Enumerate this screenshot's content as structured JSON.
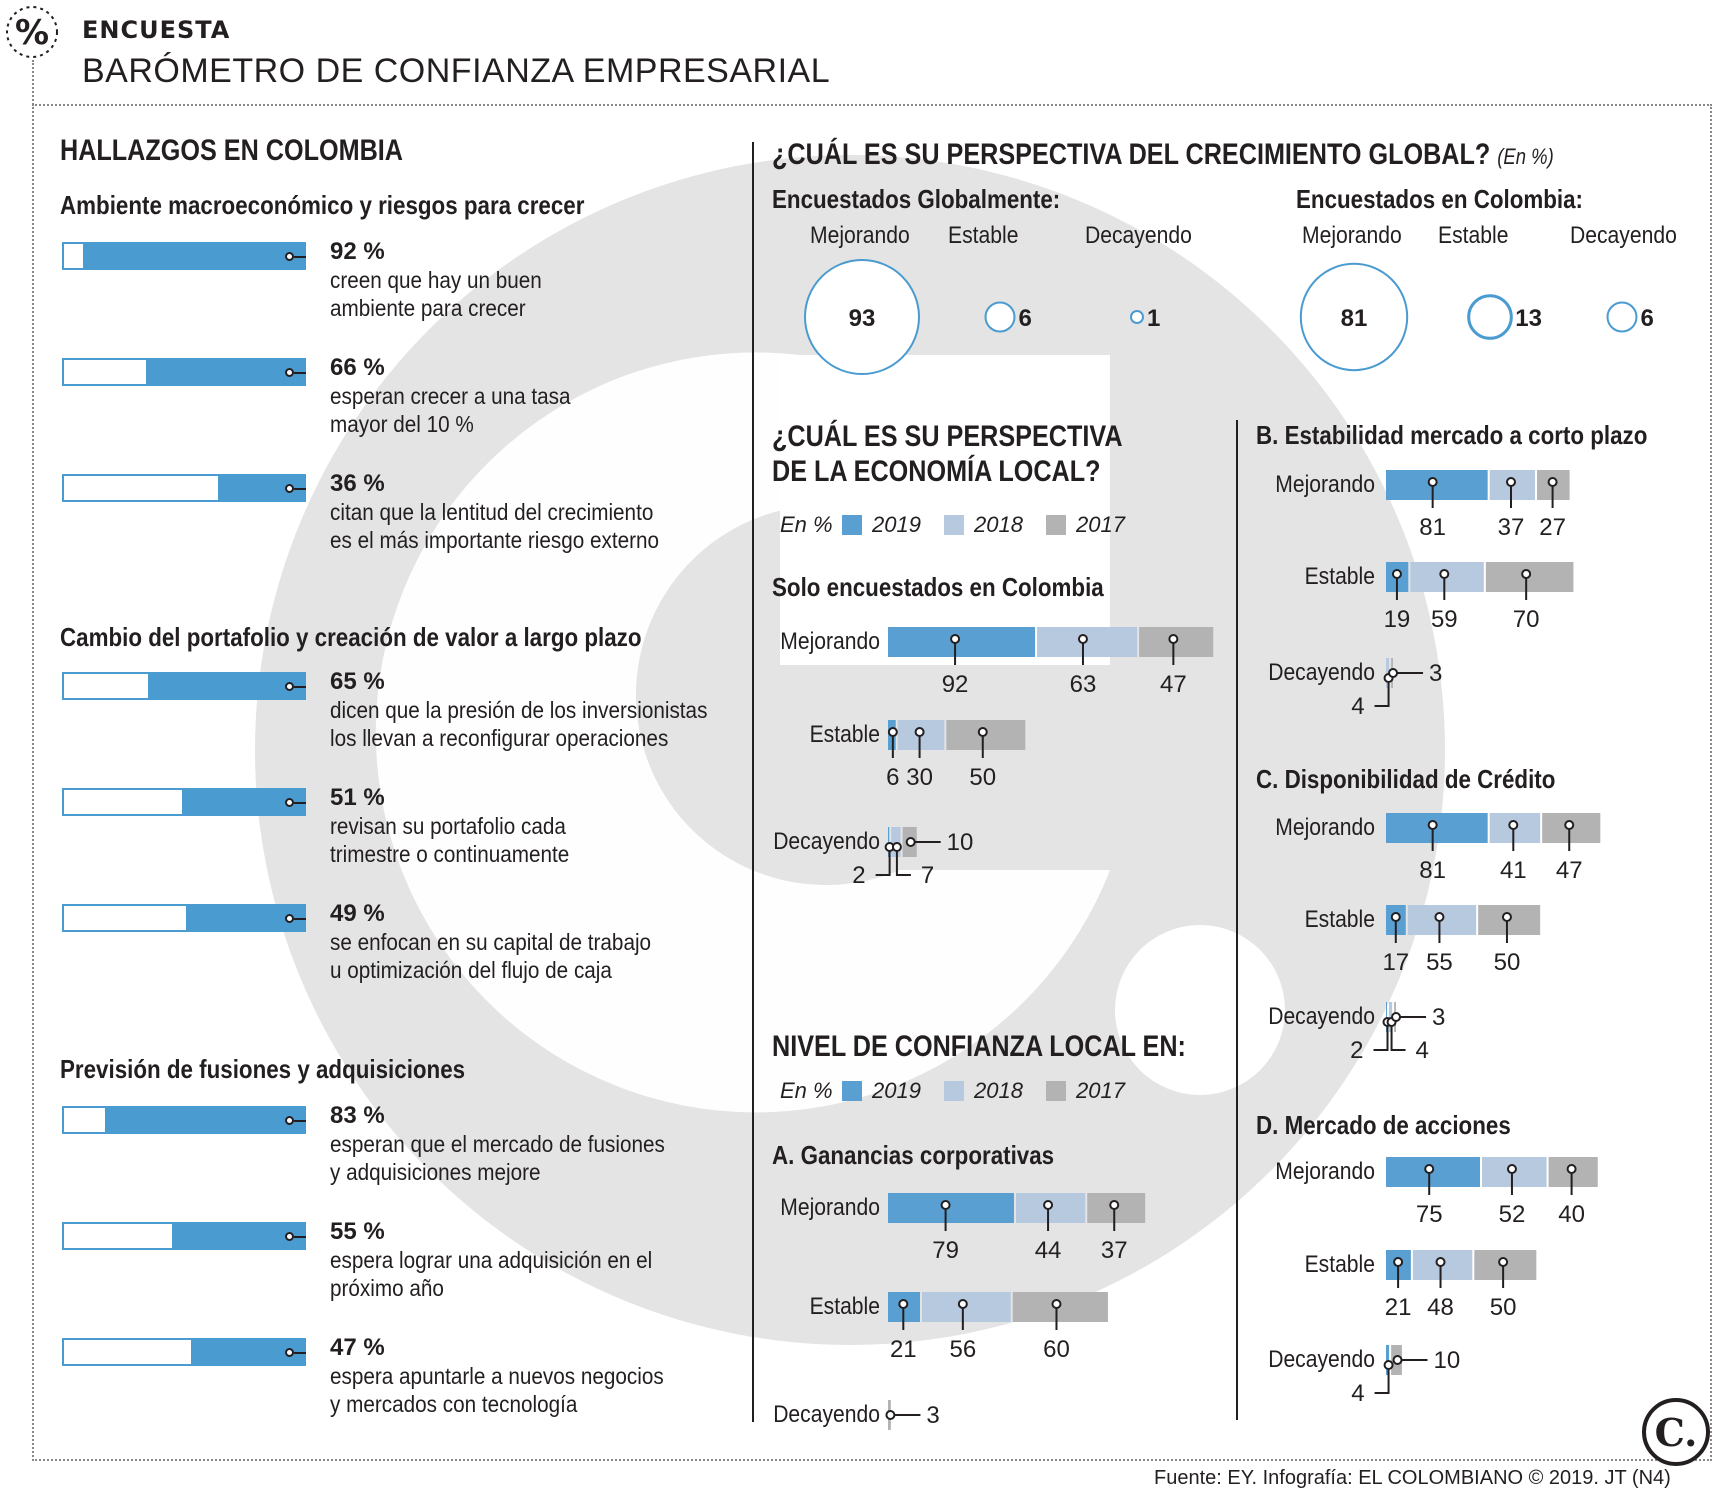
{
  "header": {
    "kicker": "ENCUESTA",
    "title": "BARÓMETRO DE CONFIANZA EMPRESARIAL",
    "logo_text": "%"
  },
  "left": {
    "title": "HALLAZGOS EN COLOMBIA",
    "sections": [
      {
        "title": "Ambiente macroeconómico y riesgos para crecer",
        "items": [
          {
            "pct": "92 %",
            "value": 92,
            "lines": [
              "creen que hay un buen",
              "ambiente para crecer"
            ]
          },
          {
            "pct": "66 %",
            "value": 66,
            "lines": [
              "esperan crecer a una tasa",
              "mayor del 10 %"
            ]
          },
          {
            "pct": "36 %",
            "value": 36,
            "lines": [
              "citan que la lentitud del crecimiento",
              "es el más importante riesgo externo"
            ]
          }
        ]
      },
      {
        "title": "Cambio del portafolio y creación de valor a largo plazo",
        "items": [
          {
            "pct": "65 %",
            "value": 65,
            "lines": [
              "dicen que la presión de los inversionistas",
              "los llevan a reconfigurar operaciones"
            ]
          },
          {
            "pct": "51 %",
            "value": 51,
            "lines": [
              "revisan su portafolio cada",
              "trimestre o continuamente"
            ]
          },
          {
            "pct": "49 %",
            "value": 49,
            "lines": [
              "se enfocan en su capital de trabajo",
              "u optimización del flujo de caja"
            ]
          }
        ]
      },
      {
        "title": "Previsión de fusiones y adquisiciones",
        "items": [
          {
            "pct": "83 %",
            "value": 83,
            "lines": [
              "esperan que el mercado de fusiones",
              "y adquisiciones mejore"
            ]
          },
          {
            "pct": "55 %",
            "value": 55,
            "lines": [
              "espera lograr una adquisición en el",
              "próximo año"
            ]
          },
          {
            "pct": "47 %",
            "value": 47,
            "lines": [
              "espera apuntarle a nuevos negocios",
              "y  mercados con tecnología"
            ]
          }
        ]
      }
    ]
  },
  "global": {
    "title": "¿CUÁL ES SU PERSPECTIVA DEL CRECIMIENTO GLOBAL?",
    "unit": "(En %)",
    "groups": [
      {
        "title": "Encuestados Globalmente:",
        "labels": [
          "Mejorando",
          "Estable",
          "Decayendo"
        ],
        "values": [
          93,
          6,
          1
        ]
      },
      {
        "title": "Encuestados en Colombia:",
        "labels": [
          "Mejorando",
          "Estable",
          "Decayendo"
        ],
        "values": [
          81,
          13,
          6
        ]
      }
    ]
  },
  "local": {
    "title1": "¿CUÁL ES SU PERSPECTIVA",
    "title2": "DE LA ECONOMÍA LOCAL?",
    "subtitle": "Solo encuestados en Colombia"
  },
  "confidence_title": "NIVEL DE CONFIANZA LOCAL EN:",
  "legend": {
    "unit": "En %",
    "years": [
      "2019",
      "2018",
      "2017"
    ]
  },
  "colors": {
    "y2019": "#5a9fd1",
    "y2018": "#b7c9df",
    "y2017": "#b3b3b3",
    "accent": "#4a9bd0"
  },
  "chart_data": [
    {
      "type": "bar",
      "title": "Solo encuestados en Colombia",
      "categories": [
        "Mejorando",
        "Estable",
        "Decayendo"
      ],
      "series": [
        {
          "name": "2019",
          "values": [
            92,
            6,
            2
          ]
        },
        {
          "name": "2018",
          "values": [
            63,
            30,
            7
          ]
        },
        {
          "name": "2017",
          "values": [
            47,
            50,
            10
          ]
        }
      ]
    },
    {
      "type": "bar",
      "title": "A. Ganancias corporativas",
      "categories": [
        "Mejorando",
        "Estable",
        "Decayendo"
      ],
      "series": [
        {
          "name": "2019",
          "values": [
            79,
            21,
            null
          ]
        },
        {
          "name": "2018",
          "values": [
            44,
            56,
            null
          ]
        },
        {
          "name": "2017",
          "values": [
            37,
            60,
            3
          ]
        }
      ]
    },
    {
      "type": "bar",
      "title": "B. Estabilidad mercado a corto plazo",
      "categories": [
        "Mejorando",
        "Estable",
        "Decayendo"
      ],
      "series": [
        {
          "name": "2019",
          "values": [
            81,
            19,
            null
          ]
        },
        {
          "name": "2018",
          "values": [
            37,
            59,
            4
          ]
        },
        {
          "name": "2017",
          "values": [
            27,
            70,
            3
          ]
        }
      ]
    },
    {
      "type": "bar",
      "title": "C. Disponibilidad de Crédito",
      "categories": [
        "Mejorando",
        "Estable",
        "Decayendo"
      ],
      "series": [
        {
          "name": "2019",
          "values": [
            81,
            17,
            2
          ]
        },
        {
          "name": "2018",
          "values": [
            41,
            55,
            4
          ]
        },
        {
          "name": "2017",
          "values": [
            47,
            50,
            3
          ]
        }
      ]
    },
    {
      "type": "bar",
      "title": "D. Mercado de acciones",
      "categories": [
        "Mejorando",
        "Estable",
        "Decayendo"
      ],
      "series": [
        {
          "name": "2019",
          "values": [
            75,
            21,
            4
          ]
        },
        {
          "name": "2018",
          "values": [
            52,
            48,
            null
          ]
        },
        {
          "name": "2017",
          "values": [
            40,
            50,
            10
          ]
        }
      ]
    }
  ],
  "footer": {
    "source": "Fuente: EY. Infografía: EL COLOMBIANO © 2019. JT (N4)",
    "logo": "C."
  }
}
